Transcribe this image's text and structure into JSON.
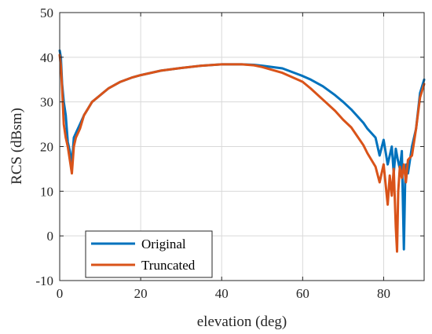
{
  "chart_data": {
    "type": "line",
    "xlabel": "elevation (deg)",
    "ylabel": "RCS (dBsm)",
    "xlim": [
      0,
      90
    ],
    "ylim": [
      -10,
      50
    ],
    "xticks": [
      0,
      20,
      40,
      60,
      80
    ],
    "yticks": [
      -10,
      0,
      10,
      20,
      30,
      40,
      50
    ],
    "grid": true,
    "legend_position": "bottom-left",
    "series": [
      {
        "name": "Original",
        "color": "#0072BD",
        "x": [
          0,
          0.3,
          0.6,
          1,
          1.5,
          2,
          2.5,
          3,
          3.5,
          4,
          5,
          6,
          7,
          8,
          10,
          12,
          15,
          18,
          20,
          25,
          30,
          35,
          40,
          45,
          48,
          50,
          55,
          60,
          62,
          65,
          68,
          70,
          72,
          75,
          76,
          78,
          79,
          80,
          81,
          82,
          82.5,
          83,
          83.5,
          84,
          84.5,
          85,
          85.3,
          85.6,
          86,
          87,
          88,
          89,
          90
        ],
        "y": [
          41.5,
          40,
          34,
          30,
          27,
          21,
          19,
          16,
          22,
          23,
          25,
          27,
          28.5,
          30,
          31.5,
          33,
          34.5,
          35.5,
          36,
          37,
          37.6,
          38.1,
          38.4,
          38.4,
          38.3,
          38.1,
          37.5,
          35.8,
          35,
          33.5,
          31.5,
          30,
          28.3,
          25.3,
          24,
          22,
          18,
          21.5,
          16,
          20,
          14,
          19.5,
          17,
          15,
          19,
          -3,
          12,
          16,
          14,
          20,
          24,
          32,
          35
        ]
      },
      {
        "name": "Truncated",
        "color": "#D95319",
        "x": [
          0,
          0.3,
          0.6,
          1,
          1.5,
          2,
          2.5,
          3,
          3.5,
          4,
          5,
          6,
          7,
          8,
          10,
          12,
          15,
          18,
          20,
          25,
          30,
          35,
          40,
          45,
          48,
          50,
          55,
          60,
          62,
          65,
          68,
          70,
          72,
          75,
          76,
          78,
          79,
          80,
          81,
          81.5,
          82,
          82.5,
          83,
          83.3,
          83.6,
          84,
          84.5,
          85,
          85.5,
          86,
          87,
          88,
          89,
          90
        ],
        "y": [
          40.5,
          38,
          33,
          25,
          22,
          20,
          17,
          14,
          20,
          22,
          24,
          27,
          28.5,
          30,
          31.5,
          33,
          34.5,
          35.5,
          36,
          37,
          37.6,
          38.1,
          38.4,
          38.4,
          38.2,
          37.8,
          36.5,
          34.5,
          33,
          30.5,
          28,
          26,
          24.3,
          20.3,
          18.5,
          15.5,
          12,
          16,
          7,
          13.5,
          9,
          15,
          2,
          -3.5,
          10,
          15.5,
          13,
          16,
          12,
          17,
          18,
          24,
          31,
          34
        ]
      }
    ]
  }
}
